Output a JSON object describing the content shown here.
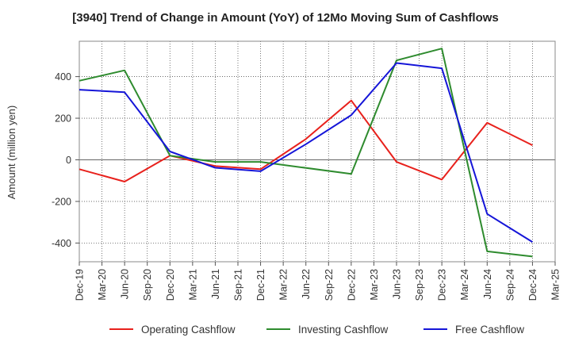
{
  "chart_data": {
    "type": "line",
    "title": "[3940]  Trend of Change in Amount (YoY) of 12Mo Moving Sum of Cashflows",
    "xlabel": "",
    "ylabel": "Amount (million yen)",
    "categories": [
      "Dec-19",
      "Mar-20",
      "Jun-20",
      "Sep-20",
      "Dec-20",
      "Mar-21",
      "Jun-21",
      "Sep-21",
      "Dec-21",
      "Mar-22",
      "Jun-22",
      "Sep-22",
      "Dec-22",
      "Mar-23",
      "Jun-23",
      "Sep-23",
      "Dec-23",
      "Mar-24",
      "Jun-24",
      "Sep-24",
      "Dec-24",
      "Mar-25"
    ],
    "ylim": [
      -490,
      570
    ],
    "yticks": [
      -400,
      -200,
      0,
      200,
      400
    ],
    "ytick_labels": [
      "-400",
      "-200",
      "0",
      "200",
      "400"
    ],
    "grid": true,
    "legend_position": "bottom",
    "series": [
      {
        "name": "Operating Cashflow",
        "color": "#e8211c",
        "values": [
          -45,
          null,
          -105,
          null,
          20,
          null,
          -30,
          null,
          -45,
          null,
          100,
          null,
          285,
          null,
          -10,
          null,
          -95,
          null,
          178,
          null,
          70,
          null
        ]
      },
      {
        "name": "Investing Cashflow",
        "color": "#2e8b2e",
        "values": [
          380,
          null,
          430,
          null,
          20,
          null,
          -10,
          null,
          -10,
          null,
          null,
          null,
          -68,
          null,
          478,
          null,
          535,
          null,
          -440,
          null,
          -465,
          null
        ]
      },
      {
        "name": "Free Cashflow",
        "color": "#1515d8",
        "values": [
          337,
          null,
          325,
          null,
          40,
          null,
          -38,
          null,
          -55,
          null,
          75,
          null,
          215,
          null,
          465,
          null,
          440,
          null,
          -260,
          null,
          -395,
          null
        ]
      }
    ]
  }
}
